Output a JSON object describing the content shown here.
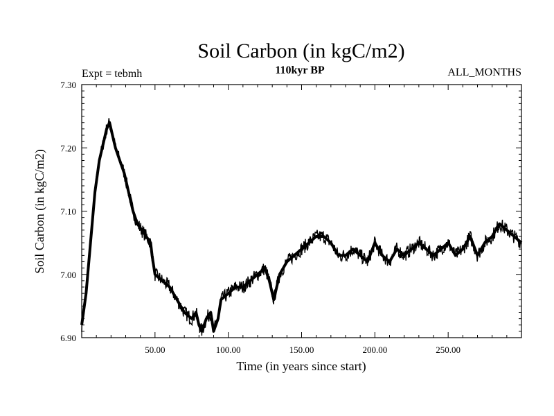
{
  "chart_data": {
    "type": "line",
    "title": "Soil Carbon (in kgC/m2)",
    "subtitle_left": "Expt = tebmh",
    "subtitle_center": "110kyr BP",
    "subtitle_right": "ALL_MONTHS",
    "xlabel": "Time (in years since start)",
    "ylabel": "Soil Carbon (in kgC/m2)",
    "xlim": [
      0,
      300
    ],
    "ylim": [
      6.9,
      7.3
    ],
    "x_ticks": [
      50,
      100,
      150,
      200,
      250
    ],
    "x_tick_labels": [
      "50.00",
      "100.00",
      "150.00",
      "200.00",
      "250.00"
    ],
    "y_ticks": [
      6.9,
      7.0,
      7.1,
      7.2,
      7.3
    ],
    "y_tick_labels": [
      "6.90",
      "7.00",
      "7.10",
      "7.20",
      "7.30"
    ],
    "series": [
      {
        "name": "Soil Carbon",
        "x": [
          0,
          3,
          6,
          9,
          12,
          15,
          17,
          19,
          21,
          23,
          26,
          29,
          32,
          35,
          38,
          41,
          44,
          47,
          48,
          50,
          55,
          60,
          65,
          70,
          75,
          78,
          80,
          82,
          85,
          88,
          90,
          93,
          95,
          100,
          105,
          110,
          115,
          120,
          125,
          128,
          131,
          135,
          140,
          145,
          150,
          155,
          160,
          165,
          170,
          175,
          180,
          185,
          190,
          195,
          200,
          205,
          210,
          215,
          220,
          225,
          230,
          235,
          240,
          245,
          250,
          255,
          260,
          265,
          270,
          275,
          280,
          285,
          290,
          295,
          300
        ],
        "values": [
          6.92,
          6.97,
          7.05,
          7.13,
          7.18,
          7.21,
          7.23,
          7.24,
          7.22,
          7.2,
          7.18,
          7.16,
          7.13,
          7.1,
          7.08,
          7.07,
          7.06,
          7.05,
          7.03,
          7.0,
          6.99,
          6.98,
          6.96,
          6.94,
          6.93,
          6.94,
          6.92,
          6.91,
          6.93,
          6.94,
          6.91,
          6.93,
          6.96,
          6.97,
          6.98,
          6.98,
          6.99,
          7.0,
          7.01,
          6.99,
          6.96,
          7.0,
          7.02,
          7.03,
          7.04,
          7.05,
          7.06,
          7.06,
          7.05,
          7.03,
          7.03,
          7.04,
          7.03,
          7.02,
          7.05,
          7.03,
          7.02,
          7.04,
          7.03,
          7.04,
          7.05,
          7.04,
          7.03,
          7.04,
          7.05,
          7.03,
          7.04,
          7.06,
          7.03,
          7.05,
          7.06,
          7.08,
          7.07,
          7.06,
          7.05
        ]
      }
    ]
  }
}
